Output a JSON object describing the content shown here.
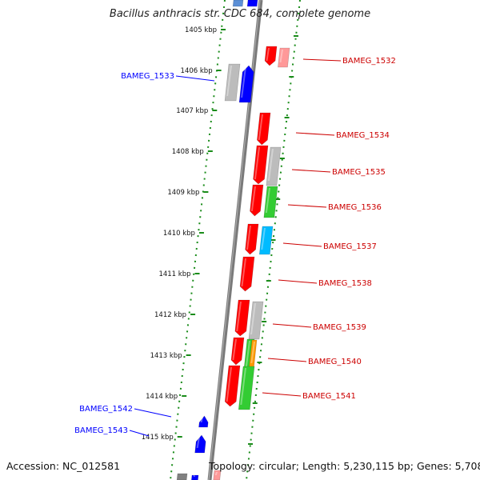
{
  "title": "Bacillus anthracis str. CDC 684, complete genome",
  "footer": {
    "accession_label": "Accession:",
    "accession": "NC_012581",
    "topology_label": "Topology:",
    "topology": "circular;",
    "length_label": "Length:",
    "length": "5,230,115 bp;",
    "genes_label": "Genes:",
    "genes": "5,708"
  },
  "colors": {
    "reverse_strand": "#0000ff",
    "forward_strand": "#ff0000",
    "gray_feature": "#bcbcbc",
    "green_feature": "#33cc33",
    "cyan_feature": "#00bbff",
    "orange_feature": "#ff9900",
    "pink_feature": "#ff9999",
    "backbone": "#808080",
    "dotted_track": "#1a8c1a"
  },
  "ticks": [
    {
      "label": "1405 kbp"
    },
    {
      "label": "1406 kbp"
    },
    {
      "label": "1407 kbp"
    },
    {
      "label": "1408 kbp"
    },
    {
      "label": "1409 kbp"
    },
    {
      "label": "1410 kbp"
    },
    {
      "label": "1411 kbp"
    },
    {
      "label": "1412 kbp"
    },
    {
      "label": "1413 kbp"
    },
    {
      "label": "1414 kbp"
    },
    {
      "label": "1415 kbp"
    }
  ],
  "gene_labels": [
    {
      "label": "BAMEG_1532",
      "strand": "forward"
    },
    {
      "label": "BAMEG_1533",
      "strand": "reverse"
    },
    {
      "label": "BAMEG_1534",
      "strand": "forward"
    },
    {
      "label": "BAMEG_1535",
      "strand": "forward"
    },
    {
      "label": "BAMEG_1536",
      "strand": "forward"
    },
    {
      "label": "BAMEG_1537",
      "strand": "forward"
    },
    {
      "label": "BAMEG_1538",
      "strand": "forward"
    },
    {
      "label": "BAMEG_1539",
      "strand": "forward"
    },
    {
      "label": "BAMEG_1540",
      "strand": "forward"
    },
    {
      "label": "BAMEG_1541",
      "strand": "forward"
    },
    {
      "label": "BAMEG_1542",
      "strand": "reverse"
    },
    {
      "label": "BAMEG_1543",
      "strand": "reverse"
    }
  ]
}
